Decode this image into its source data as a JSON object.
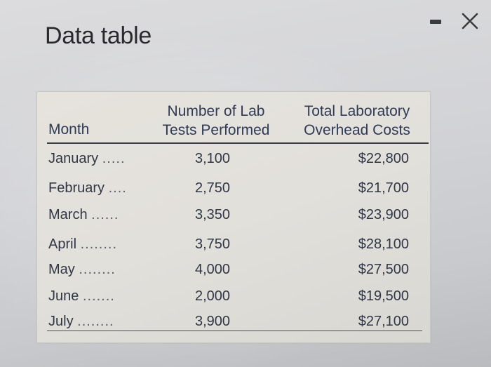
{
  "window": {
    "title": "Data table",
    "minimize_icon": "minimize-icon",
    "close_icon": "close-icon"
  },
  "table": {
    "headers": {
      "month": "Month",
      "tests_line1": "Number of Lab",
      "tests_line2": "Tests Performed",
      "costs_line1": "Total Laboratory",
      "costs_line2": "Overhead Costs"
    },
    "rows": [
      {
        "month": "January",
        "dots": ".....",
        "tests": "3,100",
        "cost": "$22,800"
      },
      {
        "month": "February",
        "dots": "....",
        "tests": "2,750",
        "cost": "$21,700"
      },
      {
        "month": "March",
        "dots": "......",
        "tests": "3,350",
        "cost": "$23,900"
      },
      {
        "month": "April",
        "dots": "........",
        "tests": "3,750",
        "cost": "$28,100"
      },
      {
        "month": "May",
        "dots": "........",
        "tests": "4,000",
        "cost": "$27,500"
      },
      {
        "month": "June",
        "dots": ".......",
        "tests": "2,000",
        "cost": "$19,500"
      },
      {
        "month": "July",
        "dots": "........",
        "tests": "3,900",
        "cost": "$27,100"
      }
    ]
  }
}
